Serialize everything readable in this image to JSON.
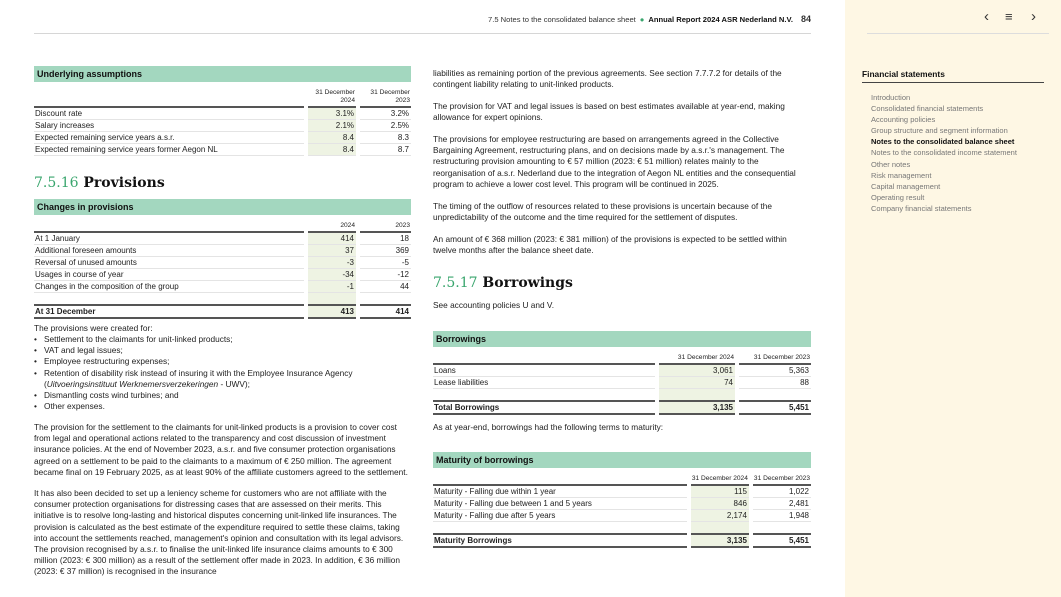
{
  "header": {
    "section": "7.5 Notes to the consolidated balance sheet",
    "report": "Annual Report 2024 ASR Nederland N.V.",
    "page": "84"
  },
  "sidebar": {
    "title": "Financial statements",
    "items": [
      "Introduction",
      "Consolidated financial statements",
      "Accounting policies",
      "Group structure and segment information",
      "Notes to the consolidated balance sheet",
      "Notes to the consolidated income statement",
      "Other notes",
      "Risk management",
      "Capital management",
      "Operating result",
      "Company financial statements"
    ],
    "active_index": 4,
    "icons": [
      "chevron-left-icon",
      "menu-icon",
      "chevron-right-icon"
    ]
  },
  "assumptions": {
    "title": "Underlying assumptions",
    "col1": "31 December 2024",
    "col2": "31 December 2023",
    "rows": [
      [
        "Discount rate",
        "3.1%",
        "3.2%"
      ],
      [
        "Salary increases",
        "2.1%",
        "2.5%"
      ],
      [
        "Expected remaining service years a.s.r.",
        "8.4",
        "8.3"
      ],
      [
        "Expected remaining service years former Aegon NL",
        "8.4",
        "8.7"
      ]
    ]
  },
  "provisions": {
    "number": "7.5.16",
    "heading": "Provisions",
    "table_title": "Changes in provisions",
    "col1": "2024",
    "col2": "2023",
    "rows": [
      [
        "At 1 January",
        "414",
        "18"
      ],
      [
        "Additional foreseen amounts",
        "37",
        "369"
      ],
      [
        "Reversal of unused amounts",
        "-3",
        "-5"
      ],
      [
        "Usages in course of year",
        "-34",
        "-12"
      ],
      [
        "Changes in the composition of the group",
        "-1",
        "44"
      ]
    ],
    "total": [
      "At 31 December",
      "413",
      "414"
    ],
    "intro": "The provisions were created for:",
    "bullets": [
      "Settlement to the claimants for unit-linked products;",
      "VAT and legal issues;",
      "Employee restructuring expenses;",
      "Retention of disability risk instead of insuring it with the Employee Insurance Agency (Uitvoeringsinstituut Werknemersverzekeringen - UWV);",
      "Dismantling costs wind turbines; and",
      "Other expenses."
    ],
    "para1": "The provision for the settlement to the claimants for unit-linked products is a provision to cover cost from legal and operational actions related to the transparency and cost discussion of investment insurance policies. At the end of November 2023, a.s.r. and five consumer protection organisations agreed on a settlement to be paid to the claimants to a maximum of € 250 million. The agreement became final on 19 February 2025, as at least 90% of the affiliate customers agreed to the settlement.",
    "para2": "It has also been decided to set up a leniency scheme for customers who are not affiliate with the consumer protection organisations for distressing cases that are assessed on their merits. This initiative is to resolve long-lasting and historical disputes concerning unit-linked life insurances. The provision is calculated as the best estimate of the expenditure required to settle these claims, taking into account the settlements reached, management's opinion and consultation with its legal advisors. The provision recognised by a.s.r. to finalise the unit-linked life insurance claims amounts to € 300 million (2023: € 300 million) as a result of the settlement offer made in 2023. In addition, € 36 million (2023: € 37 million) is recognised in the insurance"
  },
  "right": {
    "para1": "liabilities as remaining portion of the previous agreements. See section 7.7.7.2 for details of the contingent liability relating to unit-linked products.",
    "para2": "The provision for VAT and legal issues is based on best estimates available at year-end, making allowance for expert opinions.",
    "para3": "The provisions for employee restructuring are based on arrangements agreed in the Collective Bargaining Agreement, restructuring plans, and on decisions made by a.s.r.'s management. The restructuring provision amounting to € 57 million (2023: € 51 million) relates mainly to the reorganisation of a.s.r. Nederland due to the integration of Aegon NL entities and the consequential program to achieve a lower cost level. This program will be continued in 2025.",
    "para4": "The timing of the outflow of resources related to these provisions is uncertain because of the unpredictability of the outcome and the time required for the settlement of disputes.",
    "para5": "An amount of € 368 million (2023: € 381 million) of the provisions is expected to be settled within twelve months after the balance sheet date."
  },
  "borrowings": {
    "number": "7.5.17",
    "heading": "Borrowings",
    "policies": "See accounting policies U and V.",
    "table_title": "Borrowings",
    "col1": "31 December 2024",
    "col2": "31 December 2023",
    "rows": [
      [
        "Loans",
        "3,061",
        "5,363"
      ],
      [
        "Lease liabilities",
        "74",
        "88"
      ]
    ],
    "total": [
      "Total Borrowings",
      "3,135",
      "5,451"
    ],
    "maturity_intro": "As at year-end, borrowings had the following terms to maturity:"
  },
  "maturity": {
    "table_title": "Maturity of borrowings",
    "col1": "31 December 2024",
    "col2": "31 December 2023",
    "rows": [
      [
        "Maturity - Falling due within 1 year",
        "115",
        "1,022"
      ],
      [
        "Maturity - Falling due between 1 and 5 years",
        "846",
        "2,481"
      ],
      [
        "Maturity - Falling due after 5 years",
        "2,174",
        "1,948"
      ]
    ],
    "total": [
      "Maturity Borrowings",
      "3,135",
      "5,451"
    ]
  }
}
